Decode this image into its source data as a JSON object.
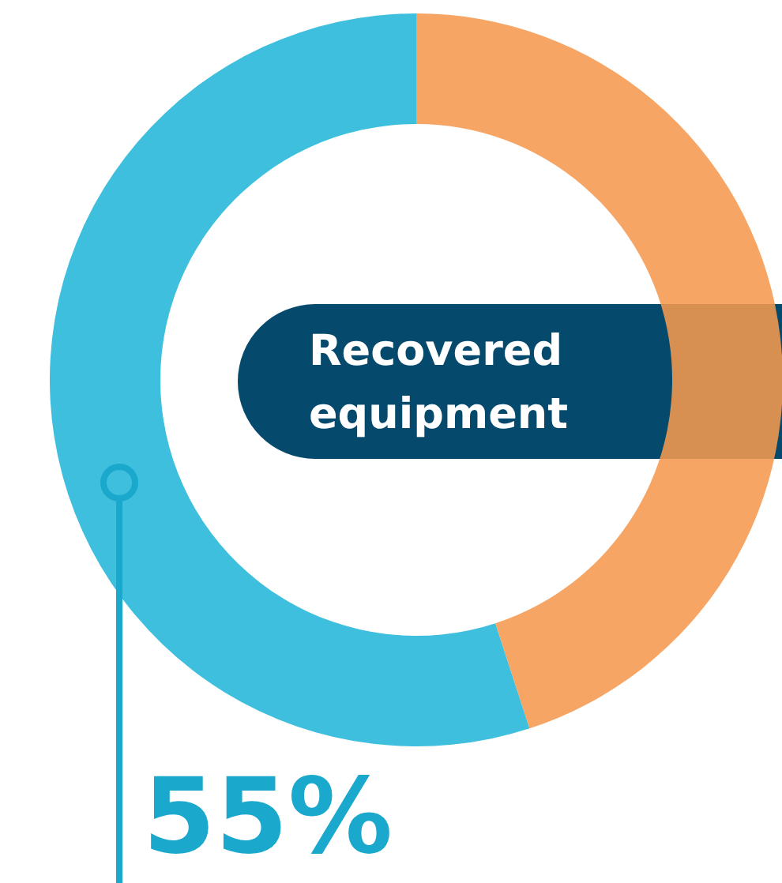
{
  "chart_data": {
    "type": "donut",
    "title": "Recovered equipment",
    "categories": [
      null,
      null
    ],
    "values": [
      55,
      45
    ],
    "colors": [
      "#35bcdc",
      "#f5984f"
    ],
    "value_labels": [
      "55%",
      null
    ]
  }
}
